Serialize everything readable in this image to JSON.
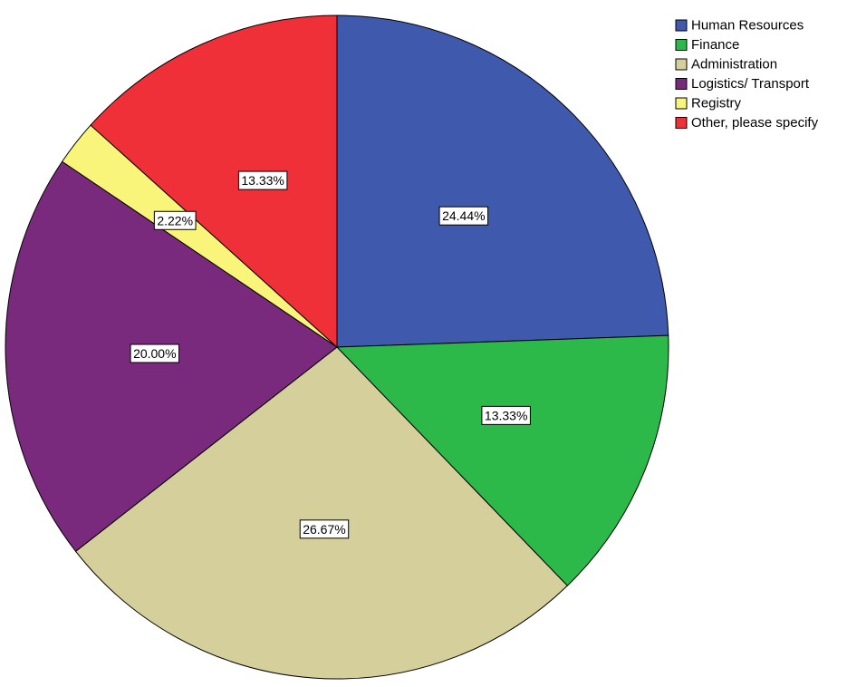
{
  "chart_data": {
    "type": "pie",
    "categories": [
      "Human Resources",
      "Finance",
      "Administration",
      "Logistics/ Transport",
      "Registry",
      "Other, please specify"
    ],
    "values": [
      24.44,
      13.33,
      26.67,
      20.0,
      2.22,
      13.33
    ],
    "data_labels": [
      "24.44%",
      "13.33%",
      "26.67%",
      "20.00%",
      "2.22%",
      "13.33%"
    ],
    "colors": [
      "#3f59ac",
      "#2db94a",
      "#d4cf9b",
      "#7a2a7c",
      "#f8f57a",
      "#f03038"
    ],
    "start_angle_deg": 0,
    "direction": "clockwise",
    "legend_position": "top-right"
  }
}
